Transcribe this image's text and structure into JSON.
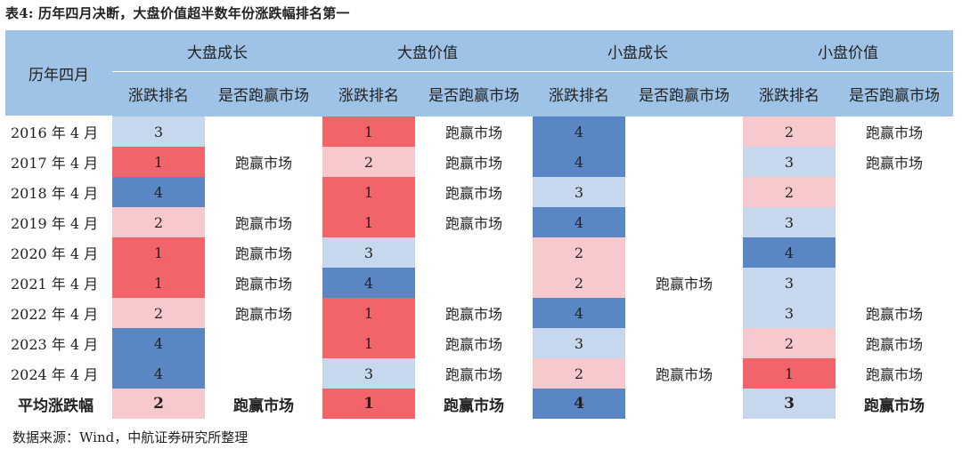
{
  "title": "表4: 历年四月决断，大盘价值超半数年份涨跌幅排名第一",
  "header": {
    "row_label": "历年四月",
    "groups": [
      "大盘成长",
      "大盘价值",
      "小盘成长",
      "小盘价值"
    ],
    "sub_rank": "涨跌排名",
    "sub_win": "是否跑赢市场"
  },
  "rows": [
    {
      "label": "2016 年 4 月",
      "cells": [
        {
          "rank": "3",
          "win": ""
        },
        {
          "rank": "1",
          "win": "跑赢市场"
        },
        {
          "rank": "4",
          "win": ""
        },
        {
          "rank": "2",
          "win": "跑赢市场"
        }
      ]
    },
    {
      "label": "2017 年 4 月",
      "cells": [
        {
          "rank": "1",
          "win": "跑赢市场"
        },
        {
          "rank": "2",
          "win": "跑赢市场"
        },
        {
          "rank": "4",
          "win": ""
        },
        {
          "rank": "3",
          "win": "跑赢市场"
        }
      ]
    },
    {
      "label": "2018 年 4 月",
      "cells": [
        {
          "rank": "4",
          "win": ""
        },
        {
          "rank": "1",
          "win": "跑赢市场"
        },
        {
          "rank": "3",
          "win": ""
        },
        {
          "rank": "2",
          "win": ""
        }
      ]
    },
    {
      "label": "2019 年 4 月",
      "cells": [
        {
          "rank": "2",
          "win": "跑赢市场"
        },
        {
          "rank": "1",
          "win": "跑赢市场"
        },
        {
          "rank": "4",
          "win": ""
        },
        {
          "rank": "3",
          "win": ""
        }
      ]
    },
    {
      "label": "2020 年 4 月",
      "cells": [
        {
          "rank": "1",
          "win": "跑赢市场"
        },
        {
          "rank": "3",
          "win": ""
        },
        {
          "rank": "2",
          "win": ""
        },
        {
          "rank": "4",
          "win": ""
        }
      ]
    },
    {
      "label": "2021 年 4 月",
      "cells": [
        {
          "rank": "1",
          "win": "跑赢市场"
        },
        {
          "rank": "4",
          "win": ""
        },
        {
          "rank": "2",
          "win": "跑赢市场"
        },
        {
          "rank": "3",
          "win": ""
        }
      ]
    },
    {
      "label": "2022 年 4 月",
      "cells": [
        {
          "rank": "2",
          "win": "跑赢市场"
        },
        {
          "rank": "1",
          "win": "跑赢市场"
        },
        {
          "rank": "4",
          "win": ""
        },
        {
          "rank": "3",
          "win": "跑赢市场"
        }
      ]
    },
    {
      "label": "2023 年 4 月",
      "cells": [
        {
          "rank": "4",
          "win": ""
        },
        {
          "rank": "1",
          "win": "跑赢市场"
        },
        {
          "rank": "3",
          "win": ""
        },
        {
          "rank": "2",
          "win": "跑赢市场"
        }
      ]
    },
    {
      "label": "2024 年 4 月",
      "cells": [
        {
          "rank": "4",
          "win": ""
        },
        {
          "rank": "3",
          "win": "跑赢市场"
        },
        {
          "rank": "2",
          "win": "跑赢市场"
        },
        {
          "rank": "1",
          "win": "跑赢市场"
        }
      ]
    }
  ],
  "average_row": {
    "label": "平均涨跌幅",
    "cells": [
      {
        "rank": "2",
        "win": "跑赢市场"
      },
      {
        "rank": "1",
        "win": "跑赢市场"
      },
      {
        "rank": "4",
        "win": ""
      },
      {
        "rank": "3",
        "win": "跑赢市场"
      }
    ]
  },
  "rank_colors": {
    "1": "#f2646a",
    "2": "#f8c9cc",
    "3": "#c7d8ee",
    "4": "#5b86c4"
  },
  "header_color": "#9ec3e6",
  "source": "数据来源：Wind，中航证券研究所整理"
}
